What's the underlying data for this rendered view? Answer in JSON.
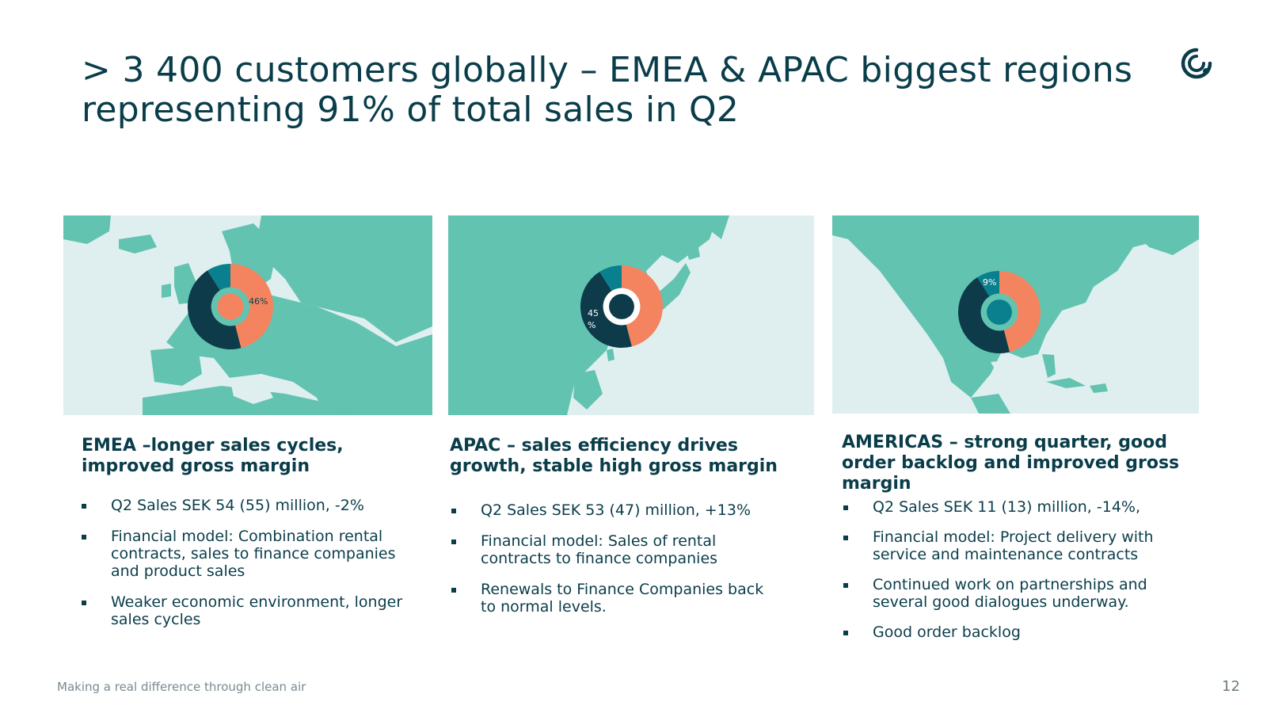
{
  "title": {
    "line1": "> 3 400 customers globally – EMEA & APAC biggest regions",
    "line2": "representing 91% of  total sales in Q2"
  },
  "colors": {
    "primary": "#0a3d4a",
    "land": "#62c3b0",
    "sea": "#dfeff0",
    "orange": "#f4845f",
    "navy": "#0d3b4a",
    "teal": "#0a7f8e"
  },
  "icons": {
    "logo": "company-logo-icon"
  },
  "regions": {
    "emea": {
      "heading_line1": "EMEA –longer sales cycles,",
      "heading_line2": "improved gross margin",
      "share_label": "46%",
      "bullets": [
        [
          "Q2 Sales SEK 54 (55) million,  -2%"
        ],
        [
          "Financial model:  Combination rental",
          "contracts, sales to finance companies",
          "and product sales"
        ],
        [
          "Weaker economic environment, longer",
          "sales cycles"
        ]
      ]
    },
    "apac": {
      "heading_line1": "APAC – sales efficiency drives",
      "heading_line2": "growth, stable high gross margin",
      "share_label_line1": "45",
      "share_label_line2": "%",
      "bullets": [
        [
          "Q2 Sales SEK 53 (47) million, +13%"
        ],
        [
          "Financial model: Sales of rental",
          "contracts to finance companies"
        ],
        [
          "Renewals to Finance Companies back",
          "to normal levels."
        ]
      ]
    },
    "americas": {
      "heading_line1": "AMERICAS – strong quarter, good",
      "heading_line2": "order backlog and improved gross",
      "heading_line3": "margin",
      "share_label": "9%",
      "bullets": [
        [
          "Q2 Sales SEK 11 (13) million, -14%,"
        ],
        [
          "Financial model: Project delivery with",
          "service and maintenance contracts"
        ],
        [
          "Continued work on partnerships and",
          "several good dialogues underway."
        ],
        [
          "Good order backlog"
        ]
      ]
    }
  },
  "chart_data": [
    {
      "type": "pie",
      "region": "EMEA",
      "categories": [
        "EMEA",
        "APAC",
        "AMERICAS"
      ],
      "values": [
        46,
        45,
        9
      ],
      "highlight": "EMEA"
    },
    {
      "type": "pie",
      "region": "APAC",
      "categories": [
        "EMEA",
        "APAC",
        "AMERICAS"
      ],
      "values": [
        46,
        45,
        9
      ],
      "highlight": "APAC"
    },
    {
      "type": "pie",
      "region": "AMERICAS",
      "categories": [
        "EMEA",
        "APAC",
        "AMERICAS"
      ],
      "values": [
        46,
        45,
        9
      ],
      "highlight": "AMERICAS"
    }
  ],
  "footer": {
    "tagline": "Making a real difference through clean air",
    "page": "12"
  }
}
